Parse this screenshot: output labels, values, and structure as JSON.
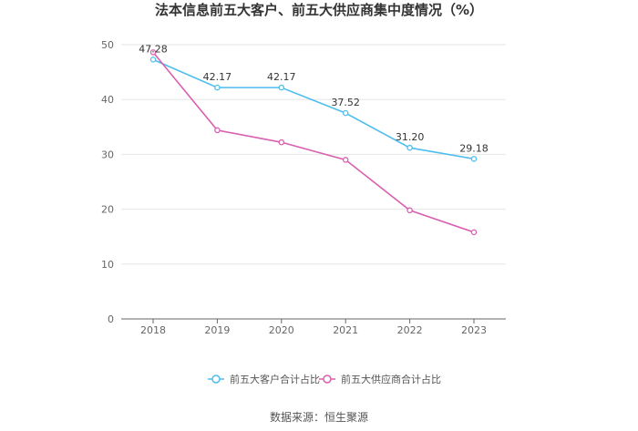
{
  "chart_data": {
    "type": "line",
    "title": "法本信息前五大客户、前五大供应商集中度情况（%）",
    "categories": [
      "2018",
      "2019",
      "2020",
      "2021",
      "2022",
      "2023"
    ],
    "ylim": [
      0,
      50
    ],
    "yticks": [
      0,
      10,
      20,
      30,
      40,
      50
    ],
    "xlabel": "",
    "ylabel": "",
    "grid": true,
    "legend_position": "bottom",
    "series": [
      {
        "name": "前五大客户合计占比",
        "color": "#4DBEEE",
        "values": [
          47.28,
          42.17,
          42.17,
          37.52,
          31.2,
          29.18
        ],
        "labels": [
          "47.28",
          "42.17",
          "42.17",
          "37.52",
          "31.20",
          "29.18"
        ],
        "show_labels": true
      },
      {
        "name": "前五大供应商合计占比",
        "color": "#D95FB0",
        "values": [
          48.6,
          34.4,
          32.2,
          29.0,
          19.8,
          15.8
        ],
        "show_labels": false
      }
    ],
    "source": "数据来源：恒生聚源"
  }
}
